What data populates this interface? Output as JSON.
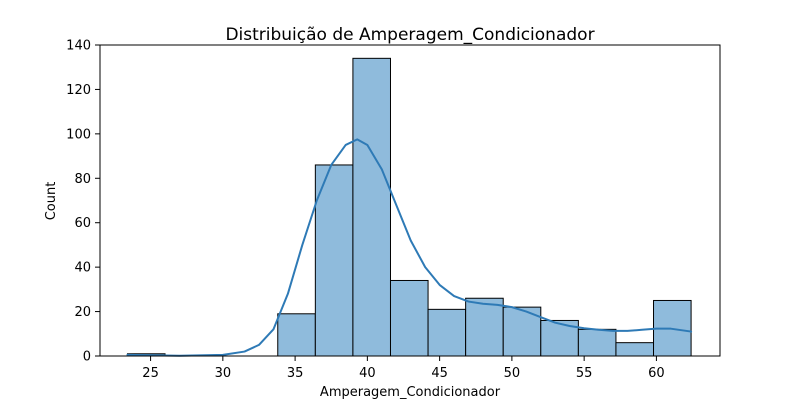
{
  "chart_data": {
    "type": "histogram",
    "title": "Distribuição de Amperagem_Condicionador",
    "xlabel": "Amperagem_Condicionador",
    "ylabel": "Count",
    "xlim": [
      21.5,
      64.4
    ],
    "ylim": [
      0,
      140
    ],
    "xticks": [
      25,
      30,
      35,
      40,
      45,
      50,
      55,
      60
    ],
    "yticks": [
      0,
      20,
      40,
      60,
      80,
      100,
      120,
      140
    ],
    "bins": [
      {
        "start": 23.4,
        "end": 26.0,
        "count": 1
      },
      {
        "start": 26.0,
        "end": 28.6,
        "count": 0
      },
      {
        "start": 28.6,
        "end": 31.2,
        "count": 0
      },
      {
        "start": 31.2,
        "end": 33.8,
        "count": 0
      },
      {
        "start": 33.8,
        "end": 36.4,
        "count": 19
      },
      {
        "start": 36.4,
        "end": 39.0,
        "count": 86
      },
      {
        "start": 39.0,
        "end": 41.6,
        "count": 134
      },
      {
        "start": 41.6,
        "end": 44.2,
        "count": 34
      },
      {
        "start": 44.2,
        "end": 46.8,
        "count": 21
      },
      {
        "start": 46.8,
        "end": 49.4,
        "count": 26
      },
      {
        "start": 49.4,
        "end": 52.0,
        "count": 22
      },
      {
        "start": 52.0,
        "end": 54.6,
        "count": 16
      },
      {
        "start": 54.6,
        "end": 57.2,
        "count": 12
      },
      {
        "start": 57.2,
        "end": 59.8,
        "count": 6
      },
      {
        "start": 59.8,
        "end": 62.4,
        "count": 25
      }
    ],
    "kde": [
      [
        23.4,
        0.5
      ],
      [
        27,
        0.1
      ],
      [
        30,
        0.5
      ],
      [
        31.5,
        2
      ],
      [
        32.5,
        5
      ],
      [
        33.5,
        12
      ],
      [
        34.5,
        28
      ],
      [
        35.5,
        50
      ],
      [
        36.5,
        70
      ],
      [
        37.5,
        86
      ],
      [
        38.5,
        95
      ],
      [
        39.3,
        97.5
      ],
      [
        40,
        95
      ],
      [
        41,
        84
      ],
      [
        42,
        68
      ],
      [
        43,
        52
      ],
      [
        44,
        40
      ],
      [
        45,
        32
      ],
      [
        46,
        27
      ],
      [
        47,
        24.5
      ],
      [
        48,
        23.5
      ],
      [
        49,
        23
      ],
      [
        50,
        22
      ],
      [
        51,
        20
      ],
      [
        52,
        17.5
      ],
      [
        53,
        15
      ],
      [
        54,
        13.5
      ],
      [
        55,
        12.5
      ],
      [
        56,
        11.8
      ],
      [
        57,
        11.3
      ],
      [
        58,
        11.3
      ],
      [
        59,
        11.8
      ],
      [
        60,
        12.3
      ],
      [
        61,
        12.3
      ],
      [
        62.4,
        11
      ]
    ],
    "colors": {
      "bar_fill": "#8fbbdc",
      "bar_edge": "#000000",
      "kde_line": "#2e7ab6"
    }
  }
}
